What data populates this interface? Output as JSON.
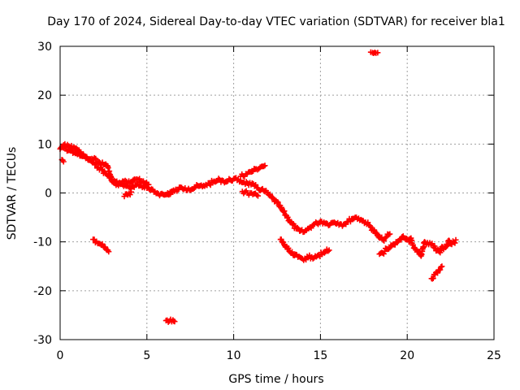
{
  "chart_data": {
    "type": "scatter",
    "title": "Day 170 of 2024, Sidereal Day-to-day VTEC variation (SDTVAR) for receiver bla1",
    "xlabel": "GPS time / hours",
    "ylabel": "SDTVAR / TECUs",
    "xlim": [
      0,
      25
    ],
    "ylim": [
      -30,
      30
    ],
    "xticks": [
      0,
      5,
      10,
      15,
      20,
      25
    ],
    "yticks": [
      -30,
      -20,
      -10,
      0,
      10,
      20,
      30
    ],
    "grid": true,
    "legend": "none",
    "marker": "plus",
    "color": "#ff0000",
    "series": [
      {
        "name": "main",
        "points": [
          [
            0.0,
            9.0
          ],
          [
            0.1,
            9.5
          ],
          [
            0.2,
            9.2
          ],
          [
            0.4,
            8.6
          ],
          [
            0.6,
            8.8
          ],
          [
            0.8,
            8.3
          ],
          [
            1.0,
            7.9
          ],
          [
            1.2,
            7.8
          ],
          [
            1.4,
            7.5
          ],
          [
            1.6,
            7.0
          ],
          [
            1.8,
            6.5
          ],
          [
            2.0,
            5.8
          ],
          [
            2.2,
            5.3
          ],
          [
            2.4,
            4.8
          ],
          [
            2.6,
            4.0
          ],
          [
            2.8,
            3.4
          ],
          [
            3.0,
            2.7
          ],
          [
            3.2,
            2.3
          ],
          [
            3.4,
            1.9
          ],
          [
            3.6,
            1.7
          ],
          [
            3.8,
            1.4
          ],
          [
            4.0,
            1.1
          ],
          [
            4.2,
            1.4
          ],
          [
            4.4,
            1.7
          ],
          [
            4.6,
            1.5
          ],
          [
            4.8,
            1.3
          ],
          [
            5.0,
            1.0
          ],
          [
            5.2,
            0.6
          ],
          [
            5.4,
            0.2
          ],
          [
            5.6,
            0.0
          ],
          [
            5.8,
            -0.2
          ],
          [
            6.0,
            -0.4
          ],
          [
            6.2,
            -0.3
          ],
          [
            6.4,
            0.3
          ],
          [
            6.6,
            0.4
          ],
          [
            6.8,
            0.7
          ],
          [
            7.0,
            1.1
          ],
          [
            7.2,
            1.0
          ],
          [
            7.4,
            0.9
          ],
          [
            7.6,
            0.8
          ],
          [
            7.8,
            1.2
          ],
          [
            8.0,
            1.4
          ],
          [
            8.2,
            1.3
          ],
          [
            8.4,
            1.7
          ],
          [
            8.6,
            1.9
          ],
          [
            8.8,
            2.2
          ],
          [
            9.0,
            2.4
          ],
          [
            9.2,
            2.7
          ],
          [
            9.4,
            2.5
          ],
          [
            9.6,
            2.3
          ],
          [
            9.8,
            2.7
          ],
          [
            10.0,
            2.9
          ],
          [
            10.2,
            2.6
          ],
          [
            10.4,
            2.4
          ],
          [
            10.6,
            2.2
          ],
          [
            10.8,
            2.0
          ],
          [
            11.0,
            1.7
          ],
          [
            11.2,
            1.4
          ],
          [
            11.4,
            1.0
          ],
          [
            11.6,
            0.7
          ],
          [
            11.8,
            0.3
          ],
          [
            12.0,
            -0.3
          ],
          [
            12.2,
            -1.0
          ],
          [
            12.4,
            -1.7
          ],
          [
            12.6,
            -2.5
          ],
          [
            12.8,
            -3.5
          ],
          [
            13.0,
            -4.5
          ],
          [
            13.2,
            -5.5
          ],
          [
            13.4,
            -6.5
          ],
          [
            13.6,
            -7.3
          ],
          [
            13.8,
            -7.8
          ],
          [
            14.0,
            -8.0
          ],
          [
            14.2,
            -7.6
          ],
          [
            14.4,
            -7.0
          ],
          [
            14.6,
            -6.5
          ],
          [
            14.8,
            -6.2
          ],
          [
            15.0,
            -5.8
          ],
          [
            15.2,
            -6.0
          ],
          [
            15.4,
            -6.3
          ],
          [
            15.6,
            -6.2
          ],
          [
            15.8,
            -6.0
          ],
          [
            16.0,
            -6.1
          ],
          [
            16.2,
            -6.4
          ],
          [
            16.4,
            -6.3
          ],
          [
            16.6,
            -5.8
          ],
          [
            16.8,
            -5.3
          ],
          [
            17.0,
            -5.0
          ],
          [
            17.2,
            -5.2
          ],
          [
            17.4,
            -5.6
          ],
          [
            17.6,
            -6.0
          ],
          [
            17.8,
            -6.6
          ],
          [
            18.0,
            -7.4
          ],
          [
            18.2,
            -8.3
          ],
          [
            18.4,
            -9.2
          ],
          [
            18.6,
            -9.6
          ],
          [
            18.8,
            -9.0
          ],
          [
            19.0,
            -8.4
          ]
        ]
      },
      {
        "name": "upper-branch",
        "points": [
          [
            0.2,
            9.8
          ],
          [
            0.5,
            9.6
          ],
          [
            0.8,
            9.4
          ],
          [
            1.0,
            8.9
          ],
          [
            1.3,
            7.5
          ],
          [
            1.6,
            6.8
          ],
          [
            1.9,
            6.9
          ],
          [
            2.2,
            6.4
          ],
          [
            2.5,
            5.8
          ],
          [
            2.7,
            5.6
          ],
          [
            3.0,
            2.3
          ],
          [
            3.3,
            1.8
          ],
          [
            3.6,
            2.4
          ],
          [
            3.9,
            2.0
          ],
          [
            4.2,
            2.6
          ],
          [
            4.5,
            2.7
          ],
          [
            4.8,
            2.4
          ],
          [
            5.1,
            1.7
          ],
          [
            10.4,
            3.4
          ],
          [
            10.7,
            3.9
          ],
          [
            11.0,
            4.3
          ],
          [
            11.3,
            4.9
          ],
          [
            11.6,
            5.4
          ],
          [
            11.8,
            5.6
          ]
        ]
      },
      {
        "name": "lower-branch",
        "points": [
          [
            0.1,
            6.8
          ],
          [
            0.2,
            6.4
          ],
          [
            3.7,
            -0.7
          ],
          [
            3.9,
            -0.4
          ],
          [
            4.1,
            0.2
          ],
          [
            6.2,
            0.0
          ],
          [
            6.5,
            0.2
          ],
          [
            10.5,
            0.3
          ],
          [
            10.8,
            0.0
          ],
          [
            11.1,
            -0.3
          ],
          [
            11.4,
            -0.6
          ]
        ]
      },
      {
        "name": "arc-morning",
        "points": [
          [
            1.9,
            -9.5
          ],
          [
            2.1,
            -9.9
          ],
          [
            2.3,
            -10.4
          ],
          [
            2.5,
            -11.0
          ],
          [
            2.7,
            -11.7
          ],
          [
            2.8,
            -12.0
          ]
        ]
      },
      {
        "name": "arc-noon",
        "points": [
          [
            12.7,
            -9.5
          ],
          [
            12.9,
            -10.5
          ],
          [
            13.1,
            -11.5
          ],
          [
            13.3,
            -12.3
          ],
          [
            13.5,
            -12.8
          ],
          [
            13.7,
            -13.1
          ],
          [
            13.9,
            -13.3
          ],
          [
            14.1,
            -13.4
          ],
          [
            14.3,
            -13.2
          ],
          [
            14.5,
            -13.1
          ],
          [
            14.7,
            -12.9
          ],
          [
            14.9,
            -12.7
          ],
          [
            15.1,
            -12.5
          ],
          [
            15.3,
            -12.0
          ],
          [
            15.5,
            -11.7
          ]
        ]
      },
      {
        "name": "cluster-evening",
        "points": [
          [
            18.4,
            -12.5
          ],
          [
            18.6,
            -12.3
          ],
          [
            18.8,
            -11.4
          ],
          [
            19.0,
            -11.2
          ],
          [
            19.3,
            -10.6
          ],
          [
            19.5,
            -9.8
          ],
          [
            19.7,
            -9.0
          ],
          [
            19.9,
            -9.5
          ],
          [
            20.1,
            -10.0
          ],
          [
            20.3,
            -10.6
          ],
          [
            20.5,
            -11.6
          ],
          [
            20.7,
            -12.0
          ],
          [
            20.9,
            -11.3
          ],
          [
            21.1,
            -10.5
          ],
          [
            21.3,
            -10.2
          ],
          [
            21.5,
            -10.8
          ],
          [
            21.7,
            -11.8
          ],
          [
            21.9,
            -12.2
          ],
          [
            22.1,
            -11.5
          ],
          [
            22.3,
            -10.8
          ],
          [
            22.5,
            -10.4
          ],
          [
            22.7,
            -10.1
          ],
          [
            22.8,
            -9.6
          ],
          [
            20.2,
            -9.3
          ],
          [
            20.8,
            -12.9
          ],
          [
            21.0,
            -10.0
          ],
          [
            22.0,
            -11.0
          ],
          [
            22.4,
            -9.7
          ]
        ]
      },
      {
        "name": "drop-evening",
        "points": [
          [
            21.4,
            -17.5
          ],
          [
            21.6,
            -16.7
          ],
          [
            21.8,
            -15.8
          ],
          [
            22.0,
            -15.0
          ]
        ]
      },
      {
        "name": "spike-low",
        "points": [
          [
            6.1,
            -26.1
          ],
          [
            6.3,
            -26.2
          ],
          [
            6.5,
            -26.0
          ],
          [
            6.6,
            -26.3
          ]
        ]
      },
      {
        "name": "spike-high",
        "points": [
          [
            17.9,
            28.8
          ],
          [
            18.0,
            28.7
          ],
          [
            18.2,
            28.6
          ],
          [
            18.3,
            28.7
          ]
        ]
      }
    ]
  }
}
